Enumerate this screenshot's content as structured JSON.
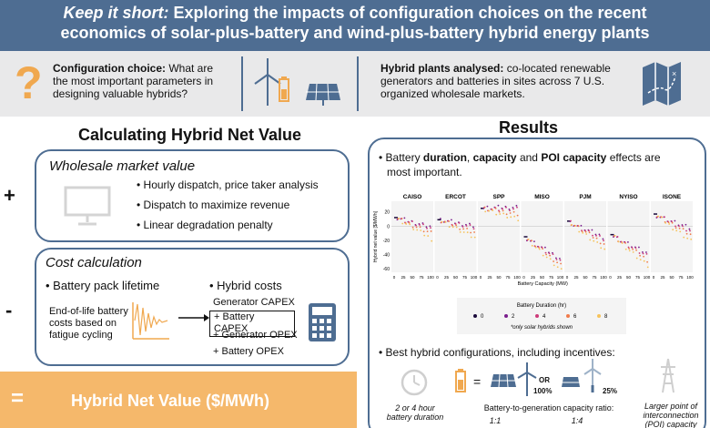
{
  "header": {
    "title_em": "Keep it short:",
    "title_rest": " Exploring the impacts of configuration choices on the recent",
    "title_line2": "economics of solar-plus-battery and wind-plus-battery hybrid energy plants"
  },
  "band": {
    "config_label": "Configuration choice:",
    "config_text": " What are",
    "config_line2": "the most important parameters in",
    "config_line3": "designing valuable hybrids?",
    "hybrid_label": "Hybrid plants analysed:",
    "hybrid_text": " co-located renewable",
    "hybrid_line2": "generators and batteries in sites across 7 U.S.",
    "hybrid_line3": "organized wholesale markets.",
    "icons": [
      "question-icon",
      "wind-turbine-icon",
      "battery-icon",
      "solar-panel-icon",
      "map-icon"
    ]
  },
  "left": {
    "title": "Calculating Hybrid Net Value",
    "plus": "+",
    "minus": "-",
    "wholesale": {
      "heading": "Wholesale market value",
      "bullets": [
        "Hourly dispatch, price taker analysis",
        "Dispatch to maximize revenue",
        "Linear degradation penalty"
      ]
    },
    "cost": {
      "heading": "Cost calculation",
      "pack_title": "Battery pack lifetime",
      "eol_1": "End-of-life battery",
      "eol_2": "costs based on",
      "eol_3": "fatigue cycling",
      "hybrid_title": "Hybrid costs",
      "items": [
        "Generator CAPEX",
        "+ Battery CAPEX",
        "+ Generator OPEX",
        "+ Battery OPEX"
      ]
    },
    "net_eq": "=",
    "net_value": "Hybrid Net Value ($/MWh)"
  },
  "results": {
    "title": "Results",
    "bullet1_pre": "Battery ",
    "bullet1_b1": "duration",
    "bullet1_mid1": ", ",
    "bullet1_b2": "capacity",
    "bullet1_mid2": " and ",
    "bullet1_b3": "POI capacity",
    "bullet1_post": " effects are",
    "bullet1_line2": "most important.",
    "bullet2": "Best hybrid configurations, including incentives:",
    "cfg_duration": "2 or 4 hour",
    "cfg_duration2": "battery duration",
    "cfg_ratio": "Battery-to-generation capacity ratio:",
    "ratio_a": "1:1",
    "ratio_b": "1:4",
    "pct_solar": "100%",
    "or": "OR",
    "pct_wind": "25%",
    "eq": "=",
    "poi_1": "Larger point of",
    "poi_2": "interconnection",
    "poi_3": "(POI) capacity"
  },
  "chart_data": {
    "type": "scatter",
    "title": "",
    "panels": [
      "CAISO",
      "ERCOT",
      "SPP",
      "MISO",
      "PJM",
      "NYISO",
      "ISONE"
    ],
    "xlabel": "Battery Capacity (MW)",
    "ylabel": "Hybrid net value [$/MWh]",
    "x_ticks": [
      0,
      25,
      50,
      75,
      100
    ],
    "y_ticks": [
      20,
      0,
      -20,
      -40,
      -60
    ],
    "xlim": [
      0,
      100
    ],
    "ylim": [
      -65,
      35
    ],
    "legend_title": "Battery Duration (hr)",
    "legend": [
      {
        "label": "0",
        "color": "#1a0a3a"
      },
      {
        "label": "2",
        "color": "#7a1d8c"
      },
      {
        "label": "4",
        "color": "#cc3a79"
      },
      {
        "label": "6",
        "color": "#f07a4a"
      },
      {
        "label": "8",
        "color": "#f6c35b"
      }
    ],
    "legend_note": "*only solar hybrids shown",
    "baseline_at_x0": [
      12,
      9,
      25,
      -15,
      7,
      -12,
      17
    ],
    "slope_per_100mw": [
      -12,
      -8,
      2,
      -30,
      -22,
      -26,
      -20
    ],
    "spread_by_duration": [
      3,
      6,
      9,
      12,
      15
    ]
  }
}
